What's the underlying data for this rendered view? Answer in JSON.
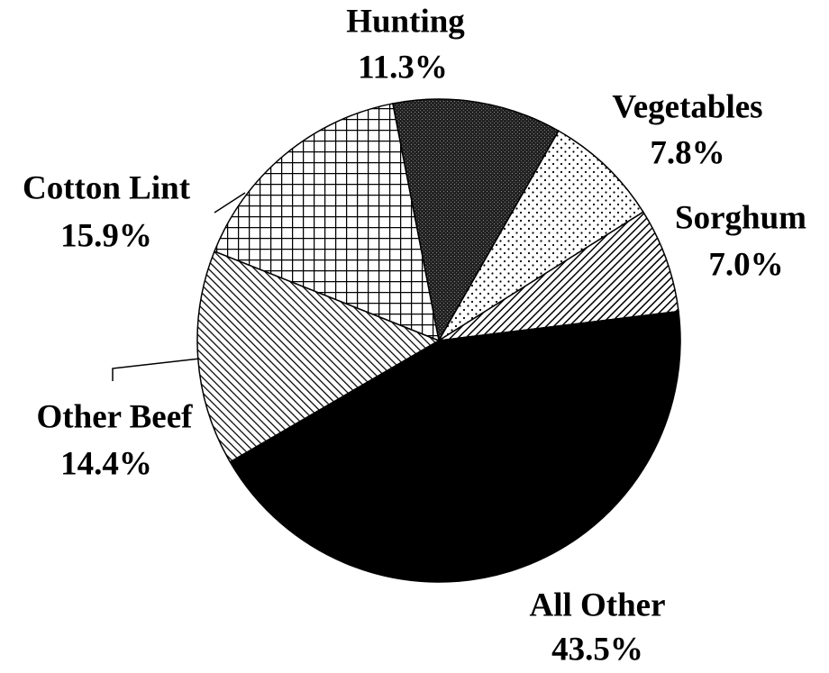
{
  "chart_data": {
    "type": "pie",
    "categories": [
      "Hunting",
      "Vegetables",
      "Sorghum",
      "All Other",
      "Other Beef",
      "Cotton Lint"
    ],
    "values": [
      11.3,
      7.8,
      7.0,
      43.5,
      14.4,
      15.9
    ],
    "value_labels": [
      "11.3%",
      "7.8%",
      "7.0%",
      "43.5%",
      "14.4%",
      "15.9%"
    ]
  }
}
